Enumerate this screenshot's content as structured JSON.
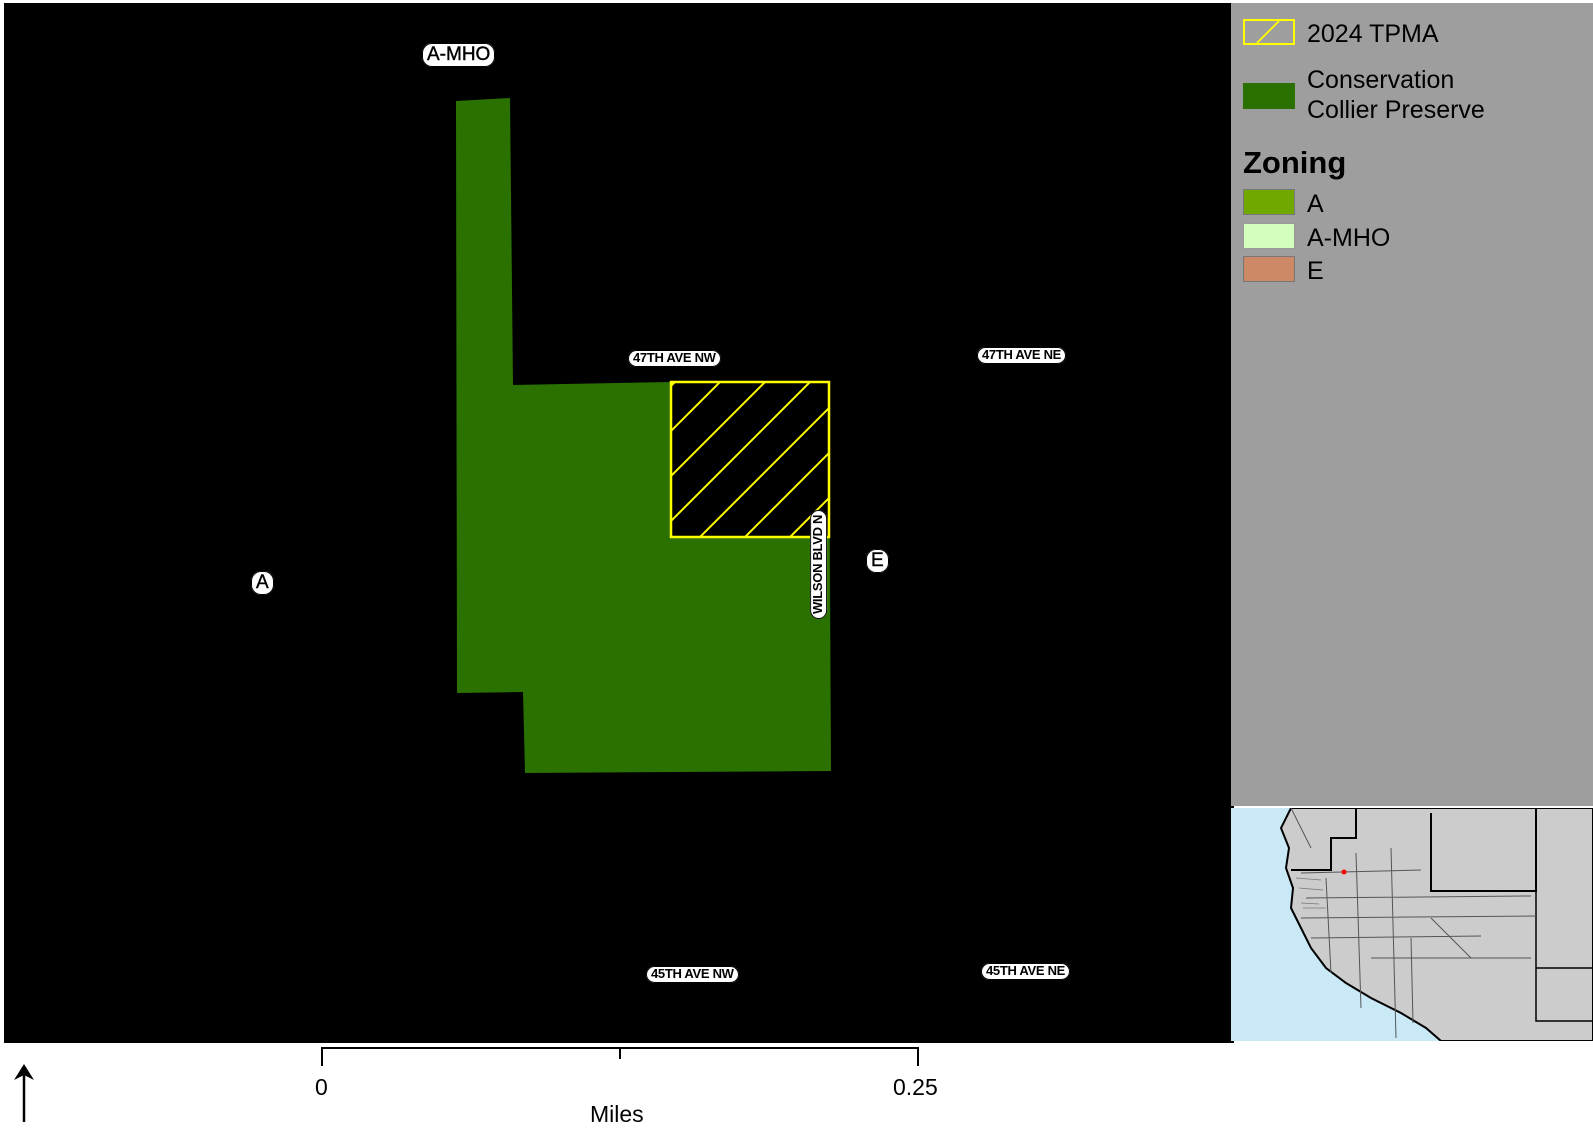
{
  "map": {
    "zone_labels": {
      "a": "A",
      "e": "E",
      "amho": "A-MHO"
    },
    "street_labels": {
      "ave47_nw": "47TH AVE NW",
      "ave47_ne": "47TH AVE NE",
      "ave45_nw": "45TH AVE NW",
      "ave45_ne": "45TH AVE NE",
      "wilson": "WILSON BLVD N"
    },
    "colors": {
      "preserve": "#2a7100",
      "tpma_outline": "#ffff00",
      "background": "#000000"
    }
  },
  "legend": {
    "items": [
      {
        "label": "2024 TPMA",
        "swatch": "hatch-yellow"
      },
      {
        "label_line1": "Conservation",
        "label_line2": "Collier Preserve",
        "color": "#2a7100"
      }
    ],
    "zoning_title": "Zoning",
    "zoning_items": [
      {
        "label": "A",
        "color": "#70a800"
      },
      {
        "label": "A-MHO",
        "color": "#d3ffbe"
      },
      {
        "label": "E",
        "color": "#cd8966"
      }
    ]
  },
  "scale": {
    "start": "0",
    "end": "0.25",
    "units": "Miles"
  },
  "north_arrow": {
    "icon": "north-arrow-icon"
  }
}
